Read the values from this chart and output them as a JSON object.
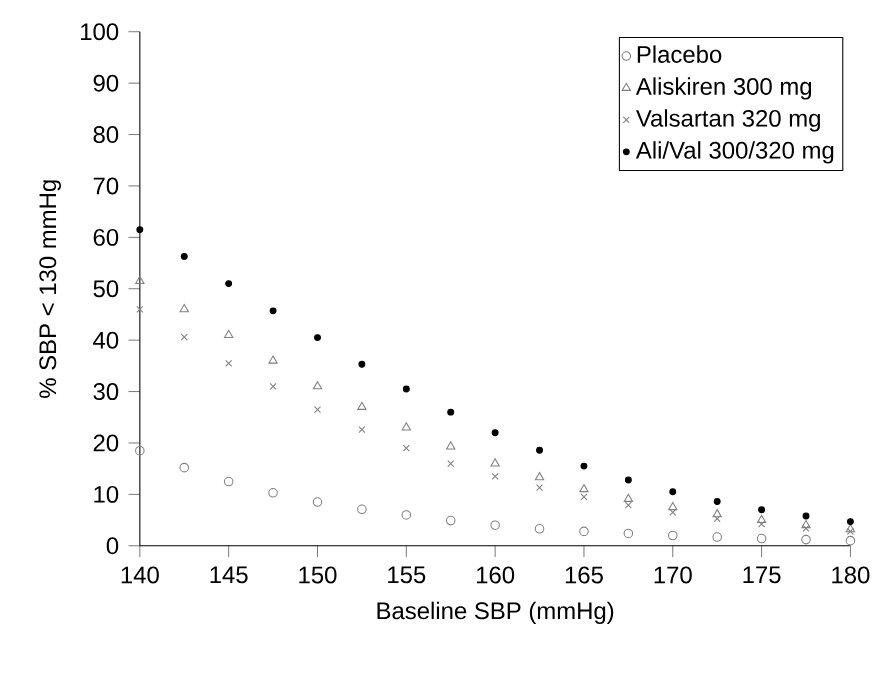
{
  "chart_data": {
    "type": "scatter",
    "xlabel": "Baseline SBP (mmHg)",
    "ylabel": "% SBP < 130 mmHg",
    "x": [
      140,
      142.5,
      145,
      147.5,
      150,
      152.5,
      155,
      157.5,
      160,
      162.5,
      165,
      167.5,
      170,
      172.5,
      175,
      177.5,
      180
    ],
    "xlim": [
      140,
      180
    ],
    "xticks": [
      140,
      145,
      150,
      155,
      160,
      165,
      170,
      175,
      180
    ],
    "ylim": [
      0,
      100
    ],
    "yticks": [
      0,
      10,
      20,
      30,
      40,
      50,
      60,
      70,
      80,
      90,
      100
    ],
    "legend": "top right",
    "grid": false,
    "series": [
      {
        "name": "Placebo",
        "color": "#808080",
        "marker": "circle",
        "values": [
          18.5,
          15.2,
          12.5,
          10.3,
          8.5,
          7.1,
          6,
          4.9,
          4,
          3.3,
          2.8,
          2.4,
          2,
          1.7,
          1.4,
          1.2,
          1
        ]
      },
      {
        "name": "Aliskiren 300 mg",
        "color": "#808080",
        "marker": "triangle",
        "values": [
          51.5,
          46,
          41,
          36,
          31,
          27,
          23,
          19.3,
          16,
          13.3,
          11,
          9.1,
          7.5,
          6.1,
          5,
          4,
          3.2
        ]
      },
      {
        "name": "Valsartan 320 mg",
        "color": "#808080",
        "marker": "cross",
        "values": [
          46,
          40.6,
          35.5,
          31,
          26.5,
          22.6,
          19,
          16,
          13.5,
          11.3,
          9.5,
          7.9,
          6.5,
          5.3,
          4.2,
          3.4,
          2.8
        ]
      },
      {
        "name": "Ali/Val 300/320 mg",
        "color": "#000000",
        "marker": "dot",
        "values": [
          61.5,
          56.3,
          51,
          45.7,
          40.5,
          35.3,
          30.5,
          26,
          22,
          18.6,
          15.5,
          12.8,
          10.5,
          8.6,
          7,
          5.8,
          4.7
        ]
      }
    ]
  }
}
